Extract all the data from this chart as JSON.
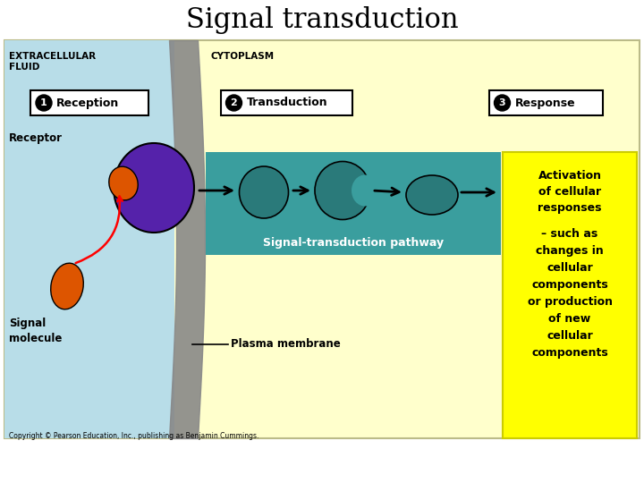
{
  "title": "Signal transduction",
  "title_fontsize": 22,
  "title_font": "serif",
  "bg_color": "#ffffcc",
  "extracellular_color": "#b8dde8",
  "membrane_color": "#888888",
  "teal_box_color": "#3a9e9e",
  "yellow_box_color": "#ffff00",
  "label_box_color": "#222222",
  "label_box_edge": "#ffffff",
  "extracellular_label": "EXTRACELLULAR\nFLUID",
  "cytoplasm_label": "CYTOPLASM",
  "step1_label": "  Reception",
  "step2_label": "  Transduction",
  "step3_label": "  Response",
  "receptor_label": "Receptor",
  "signal_molecule_label": "Signal\nmolecule",
  "plasma_membrane_label": "Plasma membrane",
  "pathway_label": "Signal-transduction pathway",
  "activation_text": "Activation\nof cellular\nresponses",
  "response_text": "– such as\nchanges in\ncellular\ncomponents\nor production\nof new\ncellular\ncomponents",
  "copyright": "Copyright © Pearson Education, Inc., publishing as Benjamin Cummings.",
  "receptor_color": "#5522aa",
  "signal_molecule_color": "#dd5500",
  "teal_molecule_color": "#2a7a7a",
  "arrow_color": "#111111",
  "white": "#ffffff",
  "black": "#000000"
}
